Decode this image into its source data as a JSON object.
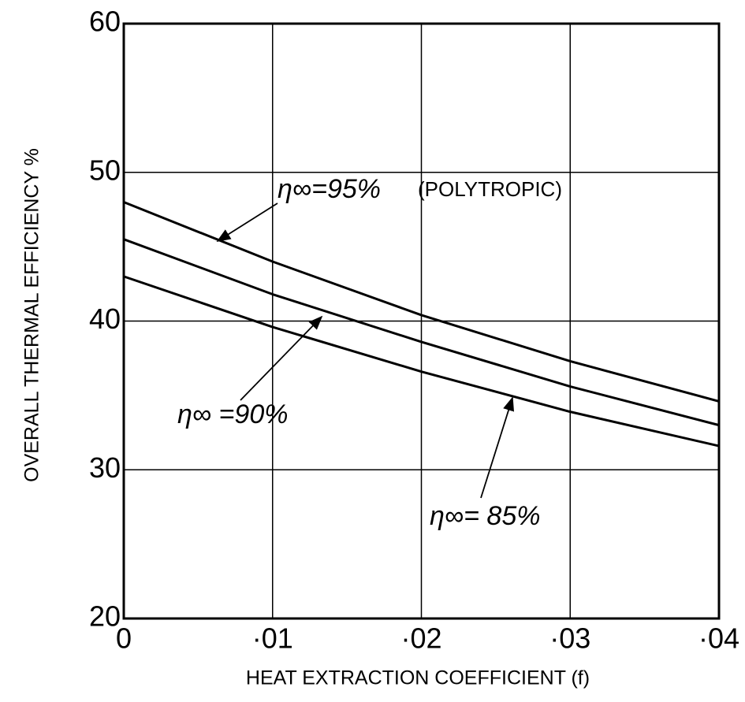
{
  "chart_data": {
    "type": "line",
    "xlabel": "HEAT EXTRACTION COEFFICIENT (f)",
    "ylabel": "OVERALL THERMAL EFFICIENCY %",
    "x": [
      0,
      0.01,
      0.02,
      0.03,
      0.04
    ],
    "series": [
      {
        "name": "η∞=95%",
        "color": "#000000",
        "values": [
          48.0,
          44.0,
          40.4,
          37.3,
          34.6
        ]
      },
      {
        "name": "η∞ =90%",
        "color": "#000000",
        "values": [
          45.5,
          41.8,
          38.6,
          35.6,
          33.0
        ]
      },
      {
        "name": "η∞= 85%",
        "color": "#000000",
        "values": [
          43.0,
          39.6,
          36.6,
          33.9,
          31.6
        ]
      }
    ],
    "annotations": [
      "(POLYTROPIC)"
    ],
    "xlim": [
      0,
      0.04
    ],
    "ylim": [
      20,
      60
    ],
    "xticks": [
      0,
      {
        "value": 0.01,
        "label": "·01"
      },
      {
        "value": 0.02,
        "label": "·02"
      },
      {
        "value": 0.03,
        "label": "·03"
      },
      {
        "value": 0.04,
        "label": "·04"
      }
    ],
    "yticks": [
      20,
      30,
      40,
      50,
      60
    ],
    "grid": true
  }
}
